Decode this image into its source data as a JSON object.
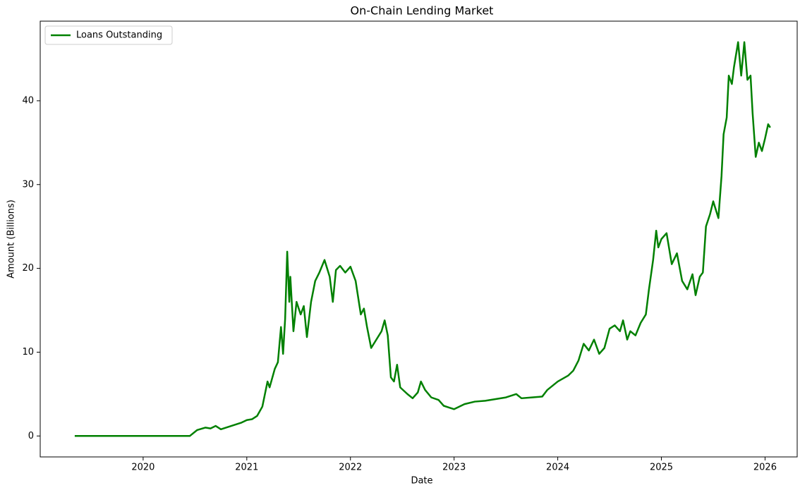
{
  "chart_data": {
    "type": "line",
    "title": "On-Chain Lending Market",
    "xlabel": "Date",
    "ylabel": "Amount (Billions)",
    "x": [
      2019.34,
      2020.45,
      2020.52,
      2020.6,
      2020.65,
      2020.7,
      2020.75,
      2020.85,
      2020.95,
      2021.0,
      2021.05,
      2021.1,
      2021.15,
      2021.2,
      2021.22,
      2021.27,
      2021.3,
      2021.33,
      2021.35,
      2021.37,
      2021.39,
      2021.41,
      2021.42,
      2021.45,
      2021.48,
      2021.52,
      2021.55,
      2021.58,
      2021.62,
      2021.66,
      2021.7,
      2021.75,
      2021.8,
      2021.83,
      2021.86,
      2021.9,
      2021.95,
      2022.0,
      2022.05,
      2022.1,
      2022.13,
      2022.16,
      2022.2,
      2022.25,
      2022.3,
      2022.33,
      2022.36,
      2022.39,
      2022.42,
      2022.45,
      2022.48,
      2022.55,
      2022.6,
      2022.65,
      2022.68,
      2022.72,
      2022.78,
      2022.85,
      2022.9,
      2022.95,
      2023.0,
      2023.1,
      2023.2,
      2023.3,
      2023.4,
      2023.5,
      2023.6,
      2023.65,
      2023.75,
      2023.85,
      2023.9,
      2024.0,
      2024.1,
      2024.15,
      2024.2,
      2024.25,
      2024.3,
      2024.35,
      2024.4,
      2024.45,
      2024.5,
      2024.55,
      2024.6,
      2024.63,
      2024.67,
      2024.7,
      2024.75,
      2024.8,
      2024.85,
      2024.88,
      2024.92,
      2024.95,
      2024.97,
      2025.0,
      2025.05,
      2025.1,
      2025.15,
      2025.2,
      2025.25,
      2025.3,
      2025.33,
      2025.37,
      2025.4,
      2025.43,
      2025.47,
      2025.5,
      2025.55,
      2025.58,
      2025.6,
      2025.63,
      2025.65,
      2025.68,
      2025.7,
      2025.74,
      2025.77,
      2025.8,
      2025.83,
      2025.86,
      2025.88,
      2025.91,
      2025.94,
      2025.97,
      2026.0,
      2026.03,
      2026.05
    ],
    "series": [
      {
        "name": "Loans Outstanding",
        "color": "#008000",
        "values": [
          0,
          0,
          0.7,
          1.0,
          0.9,
          1.2,
          0.8,
          1.2,
          1.6,
          1.9,
          2.0,
          2.4,
          3.5,
          6.5,
          5.8,
          8.0,
          8.8,
          13.0,
          9.8,
          14,
          22.0,
          16,
          19,
          12.5,
          16,
          14.5,
          15.5,
          11.8,
          16,
          18.5,
          19.5,
          21,
          19,
          16,
          19.8,
          20.3,
          19.5,
          20.2,
          18.5,
          14.5,
          15.2,
          13,
          10.5,
          11.5,
          12.5,
          13.8,
          12,
          7,
          6.5,
          8.5,
          5.8,
          5,
          4.5,
          5.2,
          6.5,
          5.5,
          4.6,
          4.3,
          3.6,
          3.4,
          3.2,
          3.8,
          4.1,
          4.2,
          4.4,
          4.6,
          5.0,
          4.5,
          4.6,
          4.7,
          5.5,
          6.5,
          7.2,
          7.8,
          9.0,
          11,
          10.2,
          11.5,
          9.8,
          10.5,
          12.8,
          13.2,
          12.5,
          13.8,
          11.5,
          12.5,
          12,
          13.5,
          14.5,
          17.5,
          21,
          24.5,
          22.5,
          23.5,
          24.2,
          20.5,
          21.8,
          18.5,
          17.5,
          19.3,
          16.8,
          19,
          19.5,
          25,
          26.5,
          28,
          26,
          31,
          36,
          38,
          43,
          42,
          44,
          47,
          43,
          47,
          42.5,
          43,
          38.5,
          33.3,
          35,
          34,
          35.5,
          37.2,
          36.8
        ]
      }
    ],
    "xlim": [
      2019.007,
      2026.31
    ],
    "ylim": [
      -2.5,
      49.5
    ],
    "xticks": [
      2020,
      2021,
      2022,
      2023,
      2024,
      2025,
      2026
    ],
    "yticks": [
      0,
      10,
      20,
      30,
      40
    ],
    "legend": "upper left"
  }
}
